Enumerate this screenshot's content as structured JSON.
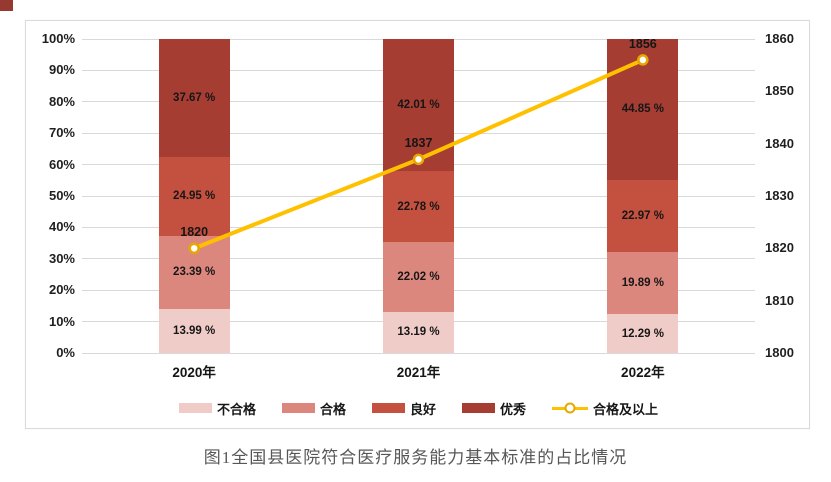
{
  "figure": {
    "caption": "图1全国县医院符合医疗服务能力基本标准的占比情况"
  },
  "chart_data": {
    "type": "combo",
    "bar_mode": "stacked",
    "categories": [
      "2020年",
      "2021年",
      "2022年"
    ],
    "bar_series": [
      {
        "name": "不合格",
        "color": "#F0CCC8",
        "values": [
          13.99,
          13.19,
          12.29
        ],
        "labels": [
          "13.99 %",
          "13.19 %",
          "12.29 %"
        ]
      },
      {
        "name": "合格",
        "color": "#DC877E",
        "values": [
          23.39,
          22.02,
          19.89
        ],
        "labels": [
          "23.39 %",
          "22.02 %",
          "19.89 %"
        ]
      },
      {
        "name": "良好",
        "color": "#C4513F",
        "values": [
          24.95,
          22.78,
          22.97
        ],
        "labels": [
          "24.95 %",
          "22.78 %",
          "22.97 %"
        ]
      },
      {
        "name": "优秀",
        "color": "#A53D33",
        "values": [
          37.67,
          42.01,
          44.85
        ],
        "labels": [
          "37.67 %",
          "42.01 %",
          "44.85 %"
        ]
      }
    ],
    "line_series": {
      "name": "合格及以上",
      "color": "#FFC000",
      "marker_fill": "#ffffff",
      "marker_ring": "#e6a800",
      "axis": "right",
      "values": [
        1820,
        1837,
        1856
      ],
      "labels": [
        "1820",
        "1837",
        "1856"
      ]
    },
    "left_axis": {
      "min": 0,
      "max": 100,
      "step": 10,
      "ticks": [
        "0%",
        "10%",
        "20%",
        "30%",
        "40%",
        "50%",
        "60%",
        "70%",
        "80%",
        "90%",
        "100%"
      ]
    },
    "right_axis": {
      "min": 1800,
      "max": 1860,
      "step": 10,
      "ticks": [
        "1800",
        "1810",
        "1820",
        "1830",
        "1840",
        "1850",
        "1860"
      ]
    },
    "grid": true,
    "gridline_color": "#d9d9d9",
    "legend_position": "bottom"
  }
}
